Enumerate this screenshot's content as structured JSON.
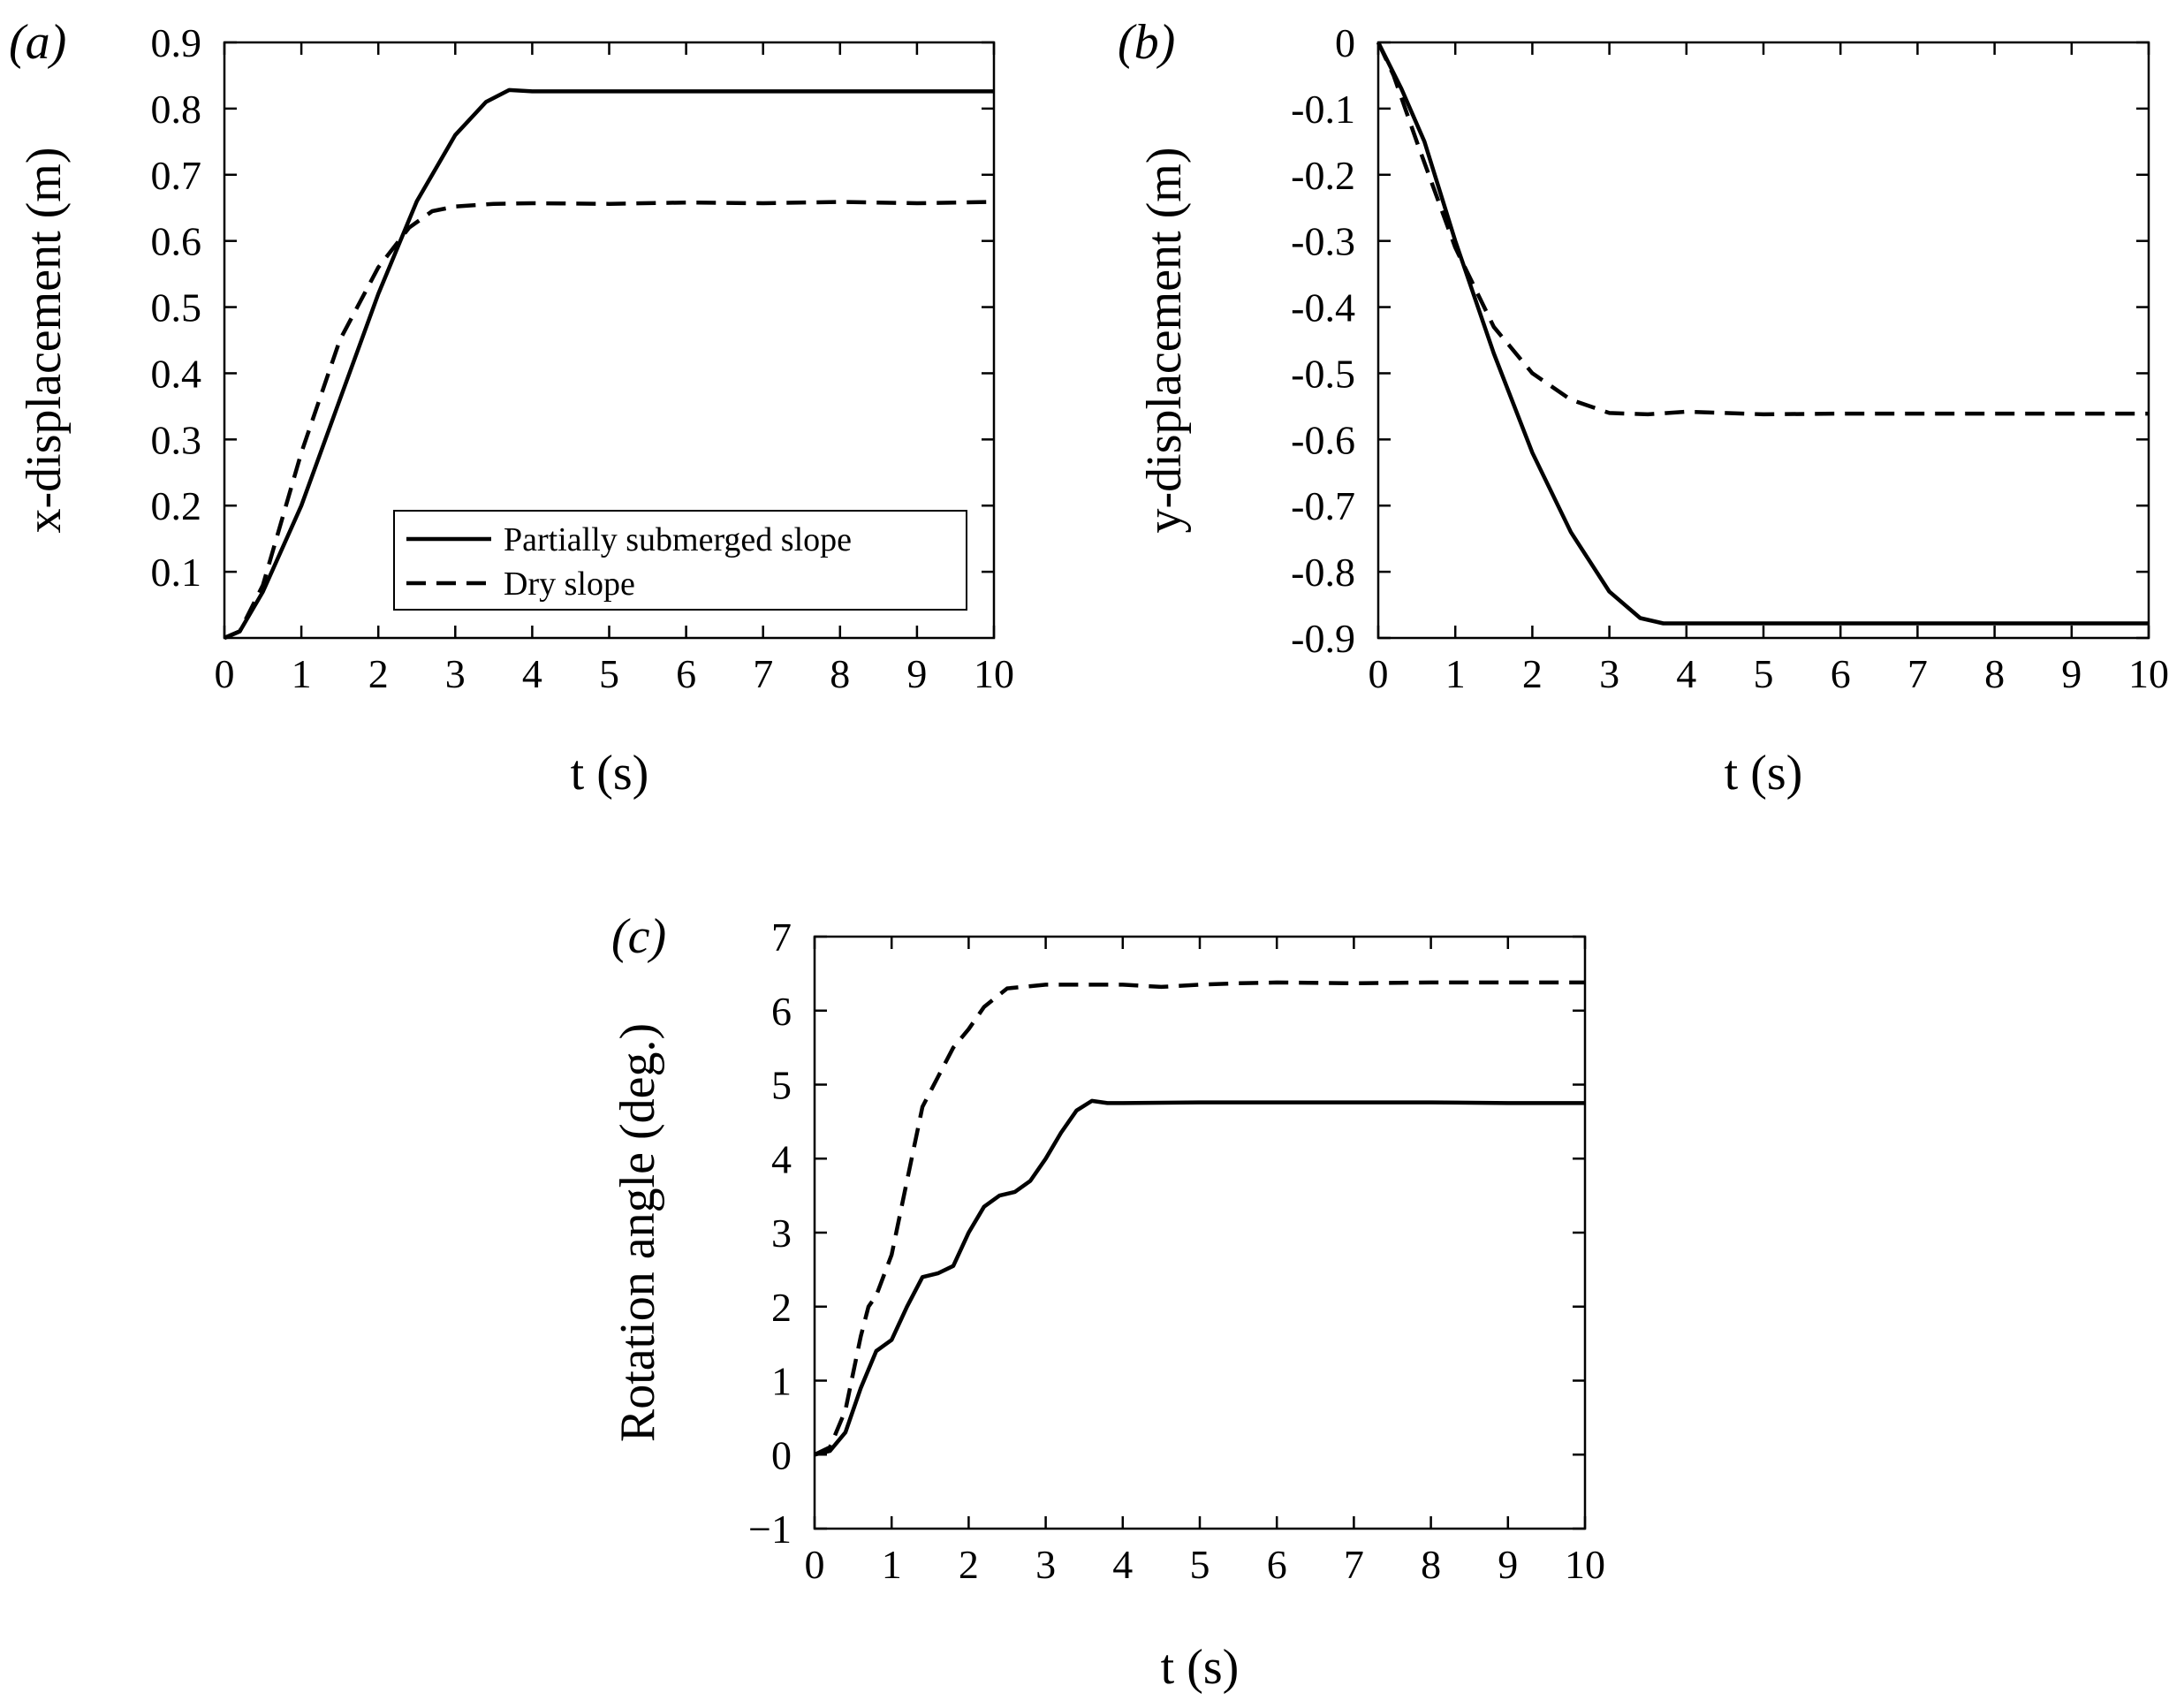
{
  "chart_data": [
    {
      "type": "line",
      "panel_label": "(a)",
      "xlabel": "t (s)",
      "ylabel": "x-displacement (m)",
      "xlim": [
        0,
        10
      ],
      "ylim": [
        0,
        0.9
      ],
      "xticks": [
        0,
        1,
        2,
        3,
        4,
        5,
        6,
        7,
        8,
        9,
        10
      ],
      "xtick_labels": [
        "0",
        "1",
        "2",
        "3",
        "4",
        "5",
        "6",
        "7",
        "8",
        "9",
        "10"
      ],
      "yticks": [
        0.1,
        0.2,
        0.3,
        0.4,
        0.5,
        0.6,
        0.7,
        0.8,
        0.9
      ],
      "ytick_labels": [
        "0.1",
        "0.2",
        "0.3",
        "0.4",
        "0.5",
        "0.6",
        "0.7",
        "0.8",
        "0.9"
      ],
      "legend": {
        "placement": "bottom-right"
      },
      "series": [
        {
          "name": "Partially submerged slope",
          "style": "solid",
          "x": [
            0,
            0.2,
            0.5,
            1.0,
            1.5,
            2.0,
            2.5,
            3.0,
            3.4,
            3.7,
            4.0,
            5.0,
            6.0,
            7.0,
            8.0,
            9.0,
            10.0
          ],
          "y": [
            0,
            0.01,
            0.07,
            0.2,
            0.36,
            0.52,
            0.66,
            0.76,
            0.81,
            0.828,
            0.826,
            0.826,
            0.826,
            0.826,
            0.826,
            0.826,
            0.826
          ]
        },
        {
          "name": "Dry slope",
          "style": "dashed",
          "x": [
            0,
            0.2,
            0.5,
            1.0,
            1.5,
            2.0,
            2.4,
            2.7,
            3.0,
            3.5,
            4.0,
            5.0,
            6.0,
            7.0,
            8.0,
            9.0,
            10.0
          ],
          "y": [
            0,
            0.01,
            0.08,
            0.28,
            0.45,
            0.56,
            0.62,
            0.645,
            0.652,
            0.656,
            0.657,
            0.656,
            0.658,
            0.657,
            0.659,
            0.657,
            0.659
          ]
        }
      ]
    },
    {
      "type": "line",
      "panel_label": "(b)",
      "xlabel": "t (s)",
      "ylabel": "y-displacement (m)",
      "xlim": [
        0,
        10
      ],
      "ylim": [
        -0.9,
        0
      ],
      "xticks": [
        0,
        1,
        2,
        3,
        4,
        5,
        6,
        7,
        8,
        9,
        10
      ],
      "xtick_labels": [
        "0",
        "1",
        "2",
        "3",
        "4",
        "5",
        "6",
        "7",
        "8",
        "9",
        "10"
      ],
      "yticks": [
        0,
        -0.1,
        -0.2,
        -0.3,
        -0.4,
        -0.5,
        -0.6,
        -0.7,
        -0.8,
        -0.9
      ],
      "ytick_labels": [
        "0",
        "-0.1",
        "-0.2",
        "-0.3",
        "-0.4",
        "-0.5",
        "-0.6",
        "-0.7",
        "-0.8",
        "-0.9"
      ],
      "series": [
        {
          "name": "Partially submerged slope",
          "style": "solid",
          "x": [
            0,
            0.3,
            0.6,
            1.0,
            1.5,
            2.0,
            2.5,
            3.0,
            3.4,
            3.7,
            4.0,
            5.0,
            6.0,
            7.0,
            8.0,
            9.0,
            10.0
          ],
          "y": [
            0,
            -0.07,
            -0.15,
            -0.3,
            -0.47,
            -0.62,
            -0.74,
            -0.83,
            -0.87,
            -0.878,
            -0.878,
            -0.878,
            -0.878,
            -0.878,
            -0.878,
            -0.878,
            -0.878
          ]
        },
        {
          "name": "Dry slope",
          "style": "dashed",
          "x": [
            0,
            0.2,
            0.5,
            1.0,
            1.5,
            2.0,
            2.5,
            3.0,
            3.5,
            4.0,
            5.0,
            6.0,
            7.0,
            8.0,
            9.0,
            10.0
          ],
          "y": [
            0,
            -0.05,
            -0.15,
            -0.31,
            -0.43,
            -0.5,
            -0.54,
            -0.56,
            -0.562,
            -0.558,
            -0.562,
            -0.561,
            -0.561,
            -0.561,
            -0.561,
            -0.561
          ]
        }
      ]
    },
    {
      "type": "line",
      "panel_label": "(c)",
      "xlabel": "t (s)",
      "ylabel": "Rotation angle (deg.)",
      "xlim": [
        0,
        10
      ],
      "ylim": [
        -1,
        7
      ],
      "xticks": [
        0,
        1,
        2,
        3,
        4,
        5,
        6,
        7,
        8,
        9,
        10
      ],
      "xtick_labels": [
        "0",
        "1",
        "2",
        "3",
        "4",
        "5",
        "6",
        "7",
        "8",
        "9",
        "10"
      ],
      "yticks": [
        -1,
        0,
        1,
        2,
        3,
        4,
        5,
        6,
        7
      ],
      "ytick_labels": [
        "−1",
        "0",
        "1",
        "2",
        "3",
        "4",
        "5",
        "6",
        "7"
      ],
      "series": [
        {
          "name": "Partially submerged slope",
          "style": "solid",
          "x": [
            0,
            0.2,
            0.4,
            0.6,
            0.8,
            1.0,
            1.2,
            1.4,
            1.6,
            1.8,
            2.0,
            2.2,
            2.4,
            2.6,
            2.8,
            3.0,
            3.2,
            3.4,
            3.6,
            3.8,
            4.0,
            5.0,
            6.0,
            7.0,
            8.0,
            9.0,
            10.0
          ],
          "y": [
            0,
            0.05,
            0.3,
            0.9,
            1.4,
            1.55,
            2.0,
            2.4,
            2.45,
            2.55,
            3.0,
            3.35,
            3.5,
            3.55,
            3.7,
            4.0,
            4.35,
            4.65,
            4.78,
            4.75,
            4.75,
            4.76,
            4.76,
            4.76,
            4.76,
            4.75,
            4.75
          ]
        },
        {
          "name": "Dry slope",
          "style": "dashed",
          "x": [
            0,
            0.2,
            0.4,
            0.6,
            0.7,
            0.8,
            1.0,
            1.2,
            1.4,
            1.6,
            1.8,
            2.0,
            2.2,
            2.5,
            2.8,
            3.0,
            3.5,
            4.0,
            4.5,
            5.0,
            5.5,
            6.0,
            7.0,
            8.0,
            9.0,
            10.0
          ],
          "y": [
            0,
            0.1,
            0.6,
            1.6,
            2.0,
            2.15,
            2.7,
            3.7,
            4.7,
            5.1,
            5.5,
            5.75,
            6.05,
            6.3,
            6.33,
            6.35,
            6.35,
            6.35,
            6.32,
            6.35,
            6.37,
            6.38,
            6.37,
            6.38,
            6.38,
            6.38
          ]
        }
      ]
    }
  ]
}
